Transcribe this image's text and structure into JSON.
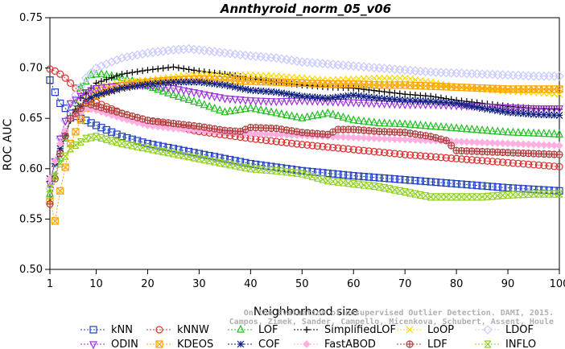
{
  "chart_data": {
    "type": "line",
    "title": "Annthyroid_norm_05_v06",
    "xlabel": "Neighborhood size",
    "ylabel": "ROC AUC",
    "xlim": [
      1,
      100
    ],
    "ylim": [
      0.5,
      0.75
    ],
    "x_ticks": [
      1,
      10,
      20,
      30,
      40,
      50,
      60,
      70,
      80,
      90,
      100
    ],
    "x_tick_labels": [
      "1",
      "10",
      "20",
      "30",
      "40",
      "50",
      "60",
      "70",
      "80",
      "90",
      "100"
    ],
    "y_ticks": [
      0.5,
      0.55,
      0.6,
      0.65,
      0.7,
      0.75
    ],
    "y_tick_labels": [
      "0.50",
      "0.55",
      "0.60",
      "0.65",
      "0.70",
      "0.75"
    ],
    "grid": false,
    "legend_position": "bottom",
    "watermark": [
      "Campos, Zimek, Sander, Campello, Micenkova, Schubert, Assent, Houle",
      "On the Evaluation of Unsupervised Outlier Detection. DAMI, 2015."
    ],
    "series": [
      {
        "name": "kNN",
        "color": "#1f3fbf",
        "marker": "square",
        "x": [
          1,
          2,
          3,
          4,
          5,
          6,
          8,
          10,
          15,
          20,
          25,
          30,
          40,
          50,
          60,
          70,
          80,
          90,
          100
        ],
        "values": [
          0.688,
          0.676,
          0.665,
          0.66,
          0.655,
          0.652,
          0.648,
          0.643,
          0.632,
          0.625,
          0.62,
          0.615,
          0.605,
          0.598,
          0.593,
          0.589,
          0.585,
          0.581,
          0.578
        ]
      },
      {
        "name": "kNNW",
        "color": "#e03030",
        "marker": "circle",
        "x": [
          1,
          2,
          3,
          4,
          5,
          6,
          8,
          10,
          15,
          20,
          25,
          30,
          40,
          50,
          60,
          70,
          80,
          90,
          100
        ],
        "values": [
          0.699,
          0.697,
          0.694,
          0.69,
          0.685,
          0.68,
          0.672,
          0.666,
          0.655,
          0.648,
          0.642,
          0.637,
          0.63,
          0.624,
          0.619,
          0.614,
          0.61,
          0.606,
          0.602
        ]
      },
      {
        "name": "LOF",
        "color": "#20c020",
        "marker": "triangle-up",
        "x": [
          1,
          3,
          5,
          7,
          9,
          11,
          15,
          20,
          25,
          30,
          35,
          40,
          45,
          50,
          55,
          60,
          65,
          70,
          80,
          90,
          100
        ],
        "values": [
          0.575,
          0.61,
          0.65,
          0.68,
          0.693,
          0.694,
          0.69,
          0.682,
          0.673,
          0.665,
          0.656,
          0.66,
          0.655,
          0.65,
          0.655,
          0.648,
          0.645,
          0.644,
          0.64,
          0.636,
          0.634
        ]
      },
      {
        "name": "SimplifiedLOF",
        "color": "#000000",
        "marker": "plus",
        "x": [
          1,
          3,
          5,
          7,
          10,
          15,
          20,
          25,
          30,
          35,
          40,
          45,
          50,
          55,
          60,
          65,
          70,
          75,
          80,
          85,
          90,
          95,
          100
        ],
        "values": [
          0.59,
          0.618,
          0.648,
          0.67,
          0.685,
          0.694,
          0.698,
          0.701,
          0.697,
          0.694,
          0.69,
          0.686,
          0.683,
          0.681,
          0.68,
          0.677,
          0.674,
          0.672,
          0.668,
          0.665,
          0.662,
          0.66,
          0.659
        ]
      },
      {
        "name": "LoOP",
        "color": "#ffd700",
        "marker": "x",
        "x": [
          1,
          3,
          5,
          8,
          10,
          15,
          20,
          25,
          30,
          35,
          40,
          45,
          50,
          55,
          60,
          65,
          70,
          75,
          80,
          85,
          90,
          95,
          100
        ],
        "values": [
          0.59,
          0.62,
          0.65,
          0.67,
          0.68,
          0.686,
          0.688,
          0.691,
          0.694,
          0.693,
          0.693,
          0.692,
          0.69,
          0.688,
          0.689,
          0.69,
          0.69,
          0.686,
          0.681,
          0.679,
          0.677,
          0.676,
          0.674
        ]
      },
      {
        "name": "LDOF",
        "color": "#c8c8ff",
        "marker": "diamond",
        "x": [
          1,
          3,
          5,
          8,
          10,
          15,
          20,
          25,
          28,
          30,
          35,
          40,
          45,
          50,
          55,
          60,
          65,
          70,
          75,
          80,
          85,
          90,
          95,
          100
        ],
        "values": [
          0.58,
          0.63,
          0.665,
          0.69,
          0.7,
          0.71,
          0.715,
          0.718,
          0.719,
          0.718,
          0.715,
          0.712,
          0.71,
          0.706,
          0.704,
          0.702,
          0.7,
          0.698,
          0.696,
          0.695,
          0.694,
          0.693,
          0.692,
          0.692
        ]
      },
      {
        "name": "ODIN",
        "color": "#9b30e0",
        "marker": "triangle-down",
        "x": [
          1,
          3,
          5,
          8,
          10,
          15,
          20,
          25,
          30,
          35,
          40,
          45,
          50,
          55,
          60,
          65,
          70,
          75,
          80,
          85,
          90,
          95,
          100
        ],
        "values": [
          0.585,
          0.63,
          0.665,
          0.676,
          0.68,
          0.683,
          0.683,
          0.68,
          0.675,
          0.67,
          0.668,
          0.667,
          0.668,
          0.667,
          0.666,
          0.665,
          0.664,
          0.664,
          0.663,
          0.662,
          0.661,
          0.66,
          0.66
        ]
      },
      {
        "name": "KDEOS",
        "color": "#ffa500",
        "marker": "square-x",
        "x": [
          1,
          2,
          3,
          5,
          8,
          10,
          15,
          20,
          25,
          30,
          35,
          40,
          45,
          50,
          55,
          60,
          65,
          70,
          75,
          80,
          85,
          90,
          95,
          100
        ],
        "values": [
          0.568,
          0.548,
          0.578,
          0.625,
          0.66,
          0.673,
          0.682,
          0.686,
          0.688,
          0.689,
          0.688,
          0.687,
          0.686,
          0.685,
          0.684,
          0.684,
          0.683,
          0.683,
          0.682,
          0.681,
          0.68,
          0.679,
          0.679,
          0.679
        ]
      },
      {
        "name": "COF",
        "color": "#102080",
        "marker": "star",
        "x": [
          1,
          3,
          5,
          8,
          10,
          15,
          20,
          25,
          30,
          35,
          40,
          45,
          50,
          55,
          60,
          65,
          70,
          75,
          80,
          85,
          90,
          95,
          100
        ],
        "values": [
          0.59,
          0.62,
          0.65,
          0.668,
          0.673,
          0.68,
          0.684,
          0.686,
          0.686,
          0.683,
          0.678,
          0.676,
          0.672,
          0.67,
          0.673,
          0.67,
          0.668,
          0.667,
          0.665,
          0.66,
          0.656,
          0.654,
          0.653
        ]
      },
      {
        "name": "FastABOD",
        "color": "#ffb0e0",
        "marker": "diamond-filled",
        "x": [
          1,
          3,
          5,
          8,
          10,
          15,
          20,
          25,
          30,
          35,
          40,
          45,
          50,
          55,
          60,
          65,
          70,
          75,
          80,
          85,
          90,
          95,
          100
        ],
        "values": [
          0.59,
          0.625,
          0.65,
          0.66,
          0.658,
          0.65,
          0.643,
          0.64,
          0.638,
          0.636,
          0.635,
          0.634,
          0.633,
          0.632,
          0.631,
          0.63,
          0.629,
          0.628,
          0.627,
          0.626,
          0.625,
          0.624,
          0.623
        ]
      },
      {
        "name": "LDF",
        "color": "#b04040",
        "marker": "circle-plus",
        "x": [
          1,
          3,
          5,
          8,
          10,
          15,
          20,
          25,
          30,
          35,
          38,
          40,
          45,
          50,
          55,
          57,
          60,
          65,
          70,
          75,
          78,
          80,
          85,
          90,
          95,
          100
        ],
        "values": [
          0.565,
          0.615,
          0.65,
          0.665,
          0.662,
          0.655,
          0.648,
          0.645,
          0.642,
          0.638,
          0.637,
          0.641,
          0.64,
          0.636,
          0.634,
          0.639,
          0.639,
          0.637,
          0.636,
          0.632,
          0.628,
          0.618,
          0.617,
          0.616,
          0.615,
          0.614
        ]
      },
      {
        "name": "INFLO",
        "color": "#90d020",
        "marker": "hourglass",
        "x": [
          1,
          3,
          5,
          8,
          10,
          15,
          20,
          25,
          30,
          35,
          40,
          45,
          50,
          55,
          60,
          65,
          70,
          75,
          80,
          85,
          90,
          95,
          100
        ],
        "values": [
          0.58,
          0.605,
          0.62,
          0.63,
          0.632,
          0.625,
          0.62,
          0.615,
          0.61,
          0.605,
          0.6,
          0.598,
          0.595,
          0.588,
          0.585,
          0.582,
          0.577,
          0.572,
          0.572,
          0.572,
          0.574,
          0.575,
          0.575
        ]
      }
    ]
  }
}
